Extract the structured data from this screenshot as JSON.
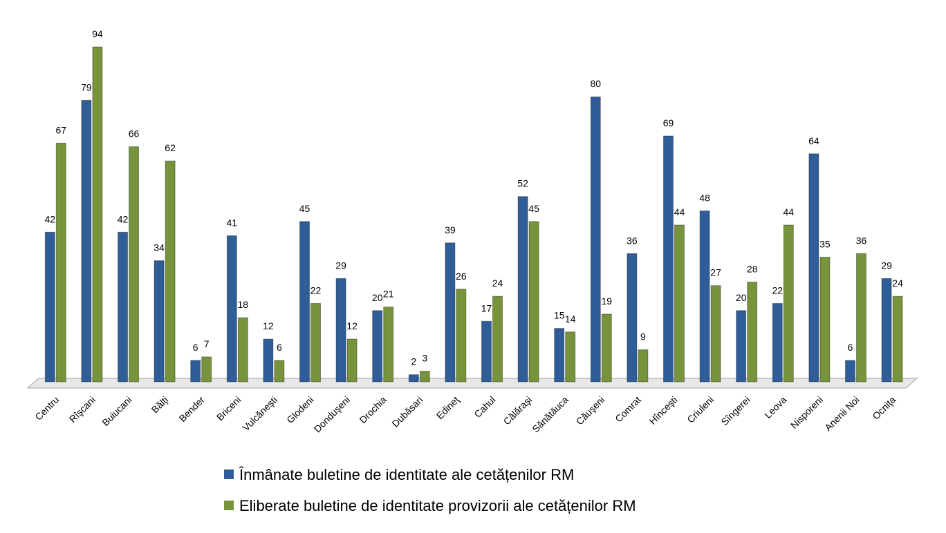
{
  "chart_data": {
    "type": "bar",
    "categories": [
      "Centru",
      "Rîşcani",
      "Buiucani",
      "Bălţi",
      "Bender",
      "Briceni",
      "Vulcăneşti",
      "Glodeni",
      "Donduşeni",
      "Drochia",
      "Dubăsari",
      "Edineţ",
      "Cahul",
      "Călăraşi",
      "Sănătăuca",
      "Căuşeni",
      "Comrat",
      "Hînceşti",
      "Criuleni",
      "Sîngerei",
      "Leova",
      "Nisporeni",
      "Anenii Noi",
      "Ocniţa"
    ],
    "series": [
      {
        "name": "Înmânate buletine de identitate ale cetățenilor RM",
        "color": "#2f5d98",
        "values": [
          42,
          79,
          42,
          34,
          6,
          41,
          12,
          45,
          29,
          20,
          2,
          39,
          17,
          52,
          15,
          80,
          36,
          69,
          48,
          20,
          22,
          64,
          6,
          29
        ]
      },
      {
        "name": "Eliberate buletine de identitate provizorii ale cetățenilor RM",
        "color": "#77933c",
        "values": [
          67,
          94,
          66,
          62,
          7,
          18,
          6,
          22,
          12,
          21,
          3,
          26,
          24,
          45,
          14,
          19,
          9,
          44,
          27,
          28,
          44,
          35,
          36,
          24
        ]
      }
    ]
  }
}
